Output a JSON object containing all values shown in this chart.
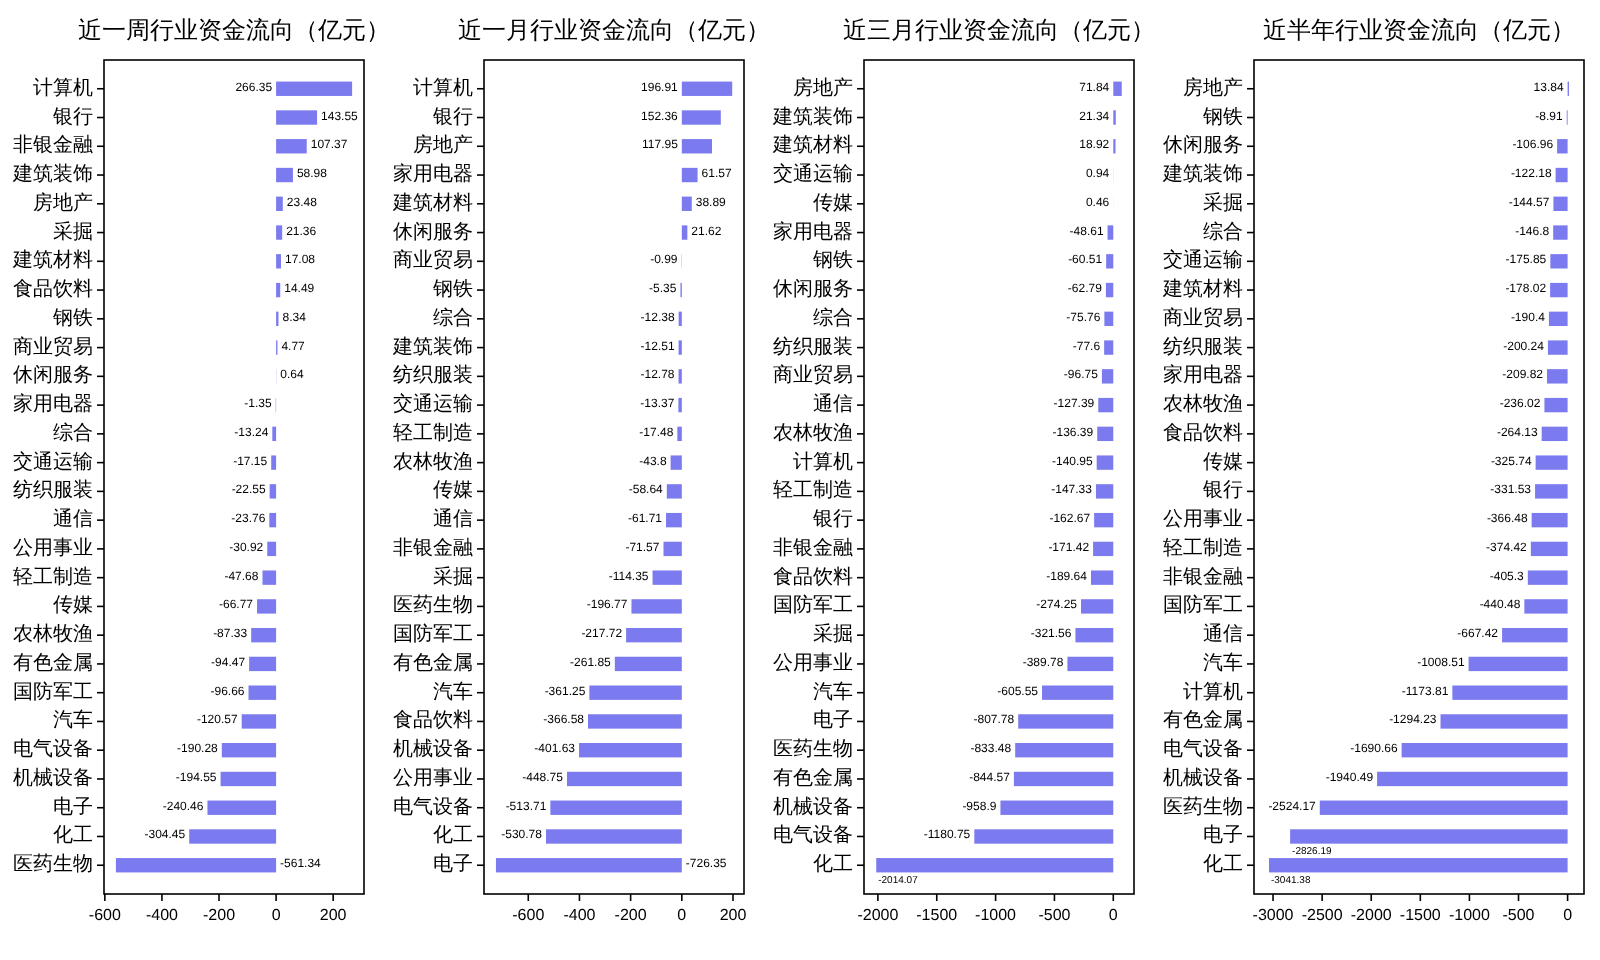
{
  "chart_data": [
    {
      "type": "bar",
      "orientation": "horizontal",
      "title": "近一周行业资金流向（亿元）",
      "categories": [
        "计算机",
        "银行",
        "非银金融",
        "建筑装饰",
        "房地产",
        "采掘",
        "建筑材料",
        "食品饮料",
        "钢铁",
        "商业贸易",
        "休闲服务",
        "家用电器",
        "综合",
        "交通运输",
        "纺织服装",
        "通信",
        "公用事业",
        "轻工制造",
        "传媒",
        "农林牧渔",
        "有色金属",
        "国防军工",
        "汽车",
        "电气设备",
        "机械设备",
        "电子",
        "化工",
        "医药生物"
      ],
      "values": [
        266.35,
        143.55,
        107.37,
        58.98,
        23.48,
        21.36,
        17.08,
        14.49,
        8.34,
        4.77,
        0.64,
        -1.35,
        -13.24,
        -17.15,
        -22.55,
        -23.76,
        -30.92,
        -47.68,
        -66.77,
        -87.33,
        -94.47,
        -96.66,
        -120.57,
        -190.28,
        -194.55,
        -240.46,
        -304.45,
        -561.34
      ],
      "color": "#7b7bef",
      "xlim": [
        -603,
        308
      ],
      "xticks": [
        -600,
        -400,
        -200,
        0,
        200
      ],
      "data_labels": true
    },
    {
      "type": "bar",
      "orientation": "horizontal",
      "title": "近一月行业资金流向（亿元）",
      "categories": [
        "计算机",
        "银行",
        "房地产",
        "家用电器",
        "建筑材料",
        "休闲服务",
        "商业贸易",
        "钢铁",
        "综合",
        "建筑装饰",
        "纺织服装",
        "交通运输",
        "轻工制造",
        "农林牧渔",
        "传媒",
        "通信",
        "非银金融",
        "采掘",
        "医药生物",
        "国防军工",
        "有色金属",
        "汽车",
        "食品饮料",
        "机械设备",
        "公用事业",
        "电气设备",
        "化工",
        "电子"
      ],
      "values": [
        196.91,
        152.36,
        117.95,
        61.57,
        38.89,
        21.62,
        -0.99,
        -5.35,
        -12.38,
        -12.51,
        -12.78,
        -13.37,
        -17.48,
        -43.8,
        -58.64,
        -61.71,
        -71.57,
        -114.35,
        -196.77,
        -217.72,
        -261.85,
        -361.25,
        -366.58,
        -401.63,
        -448.75,
        -513.71,
        -530.78,
        -726.35
      ],
      "color": "#7b7bef",
      "xlim": [
        -773,
        243
      ],
      "xticks": [
        -600,
        -400,
        -200,
        0,
        200
      ],
      "data_labels": true
    },
    {
      "type": "bar",
      "orientation": "horizontal",
      "title": "近三月行业资金流向（亿元）",
      "categories": [
        "房地产",
        "建筑装饰",
        "建筑材料",
        "交通运输",
        "传媒",
        "家用电器",
        "钢铁",
        "休闲服务",
        "综合",
        "纺织服装",
        "商业贸易",
        "通信",
        "农林牧渔",
        "计算机",
        "轻工制造",
        "银行",
        "非银金融",
        "食品饮料",
        "国防军工",
        "采掘",
        "公用事业",
        "汽车",
        "电子",
        "医药生物",
        "有色金属",
        "机械设备",
        "电气设备",
        "化工"
      ],
      "values": [
        71.84,
        21.34,
        18.92,
        0.94,
        0.46,
        -48.61,
        -60.51,
        -62.79,
        -75.76,
        -77.6,
        -96.75,
        -127.39,
        -136.39,
        -140.95,
        -147.33,
        -162.67,
        -171.42,
        -189.64,
        -274.25,
        -321.56,
        -389.78,
        -605.55,
        -807.78,
        -833.48,
        -844.57,
        -958.9,
        -1180.75,
        -2014.07
      ],
      "color": "#7b7bef",
      "xlim": [
        -2118,
        176
      ],
      "xticks": [
        -2000,
        -1500,
        -1000,
        -500,
        0
      ],
      "data_labels": true
    },
    {
      "type": "bar",
      "orientation": "horizontal",
      "title": "近半年行业资金流向（亿元）",
      "categories": [
        "房地产",
        "钢铁",
        "休闲服务",
        "建筑装饰",
        "采掘",
        "综合",
        "交通运输",
        "建筑材料",
        "商业贸易",
        "纺织服装",
        "家用电器",
        "农林牧渔",
        "食品饮料",
        "传媒",
        "银行",
        "公用事业",
        "轻工制造",
        "非银金融",
        "国防军工",
        "通信",
        "汽车",
        "计算机",
        "有色金属",
        "电气设备",
        "机械设备",
        "医药生物",
        "电子",
        "化工"
      ],
      "values": [
        13.84,
        -8.91,
        -106.96,
        -122.18,
        -144.57,
        -146.8,
        -175.85,
        -178.02,
        -190.4,
        -200.24,
        -209.82,
        -236.02,
        -264.13,
        -325.74,
        -331.53,
        -366.48,
        -374.42,
        -405.3,
        -440.48,
        -667.42,
        -1008.51,
        -1173.81,
        -1294.23,
        -1690.66,
        -1940.49,
        -2524.17,
        -2826.19,
        -3041.38
      ],
      "color": "#7b7bef",
      "xlim": [
        -3194,
        167
      ],
      "xticks": [
        -3000,
        -2500,
        -2000,
        -1500,
        -1000,
        -500,
        0
      ],
      "data_labels": true
    }
  ]
}
